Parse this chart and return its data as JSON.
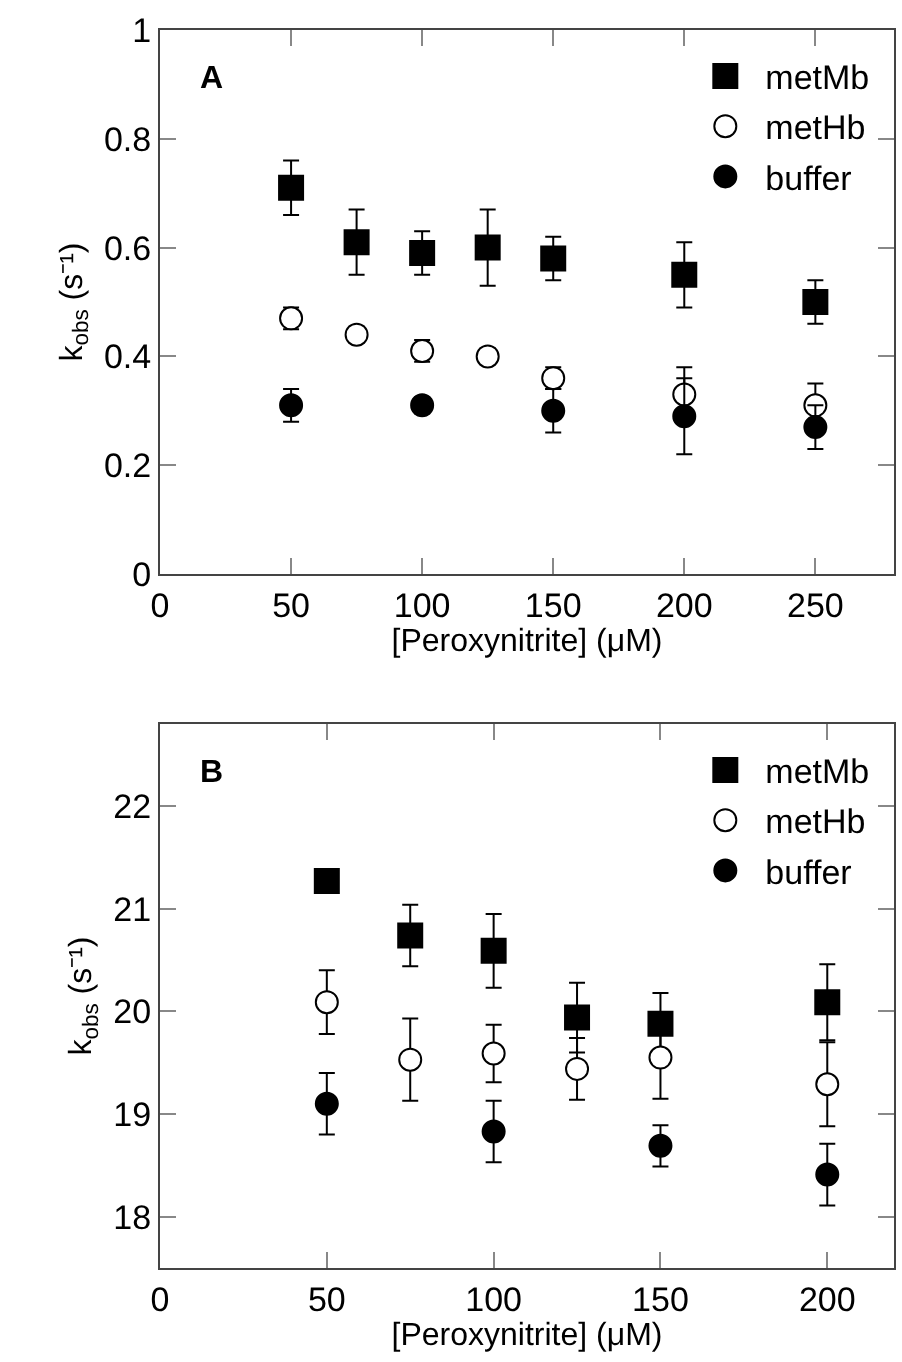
{
  "chart_data": [
    {
      "type": "scatter",
      "title": "A",
      "xlabel": "[Peroxynitrite] (μM)",
      "ylabel": "k$_{obs}$ (s⁻¹)",
      "xlim": [
        0,
        280
      ],
      "xticks": [
        0,
        50,
        100,
        150,
        200,
        250
      ],
      "ylim": [
        0,
        1
      ],
      "yticks": [
        0,
        0.2,
        0.4,
        0.6,
        0.8,
        1
      ],
      "legend": "top right",
      "series": [
        {
          "name": "metMb",
          "color": "#000000",
          "marker": "square",
          "x": [
            50,
            75,
            100,
            125,
            150,
            200,
            250
          ],
          "values": [
            0.71,
            0.61,
            0.59,
            0.6,
            0.58,
            0.55,
            0.5
          ],
          "errors": [
            0.05,
            0.06,
            0.04,
            0.07,
            0.04,
            0.06,
            0.04
          ]
        },
        {
          "name": "metHb",
          "color": "#ffffff",
          "marker": "circle",
          "x": [
            50,
            75,
            100,
            125,
            150,
            200,
            250
          ],
          "values": [
            0.47,
            0.44,
            0.41,
            0.4,
            0.36,
            0.33,
            0.31
          ],
          "errors": [
            0.02,
            0.015,
            0.02,
            0.015,
            0.02,
            0.05,
            0.04
          ]
        },
        {
          "name": "buffer",
          "color": "#000000",
          "marker": "circle",
          "x": [
            50,
            100,
            150,
            200,
            250
          ],
          "values": [
            0.31,
            0.31,
            0.3,
            0.29,
            0.27
          ],
          "errors": [
            0.03,
            0.015,
            0.04,
            0.07,
            0.04
          ]
        }
      ]
    },
    {
      "type": "scatter",
      "title": "B",
      "xlabel": "[Peroxynitrite] (μM)",
      "ylabel": "k$_{obs}$ (s⁻¹)",
      "xlim": [
        0,
        220
      ],
      "xticks": [
        0,
        50,
        100,
        150,
        200
      ],
      "ylim": [
        17.5,
        22.8
      ],
      "yticks": [
        18,
        19,
        20,
        21,
        22
      ],
      "legend": "top right",
      "series": [
        {
          "name": "metMb",
          "color": "#000000",
          "marker": "square",
          "x": [
            50,
            75,
            100,
            125,
            150,
            200
          ],
          "values": [
            21.27,
            20.74,
            20.59,
            19.94,
            19.88,
            20.09
          ],
          "errors": [
            null,
            0.3,
            0.36,
            0.34,
            0.3,
            0.37
          ]
        },
        {
          "name": "metHb",
          "color": "#ffffff",
          "marker": "circle",
          "x": [
            50,
            75,
            100,
            125,
            150,
            200
          ],
          "values": [
            20.09,
            19.53,
            19.59,
            19.44,
            19.55,
            19.29
          ],
          "errors": [
            0.31,
            0.4,
            0.28,
            0.3,
            0.4,
            0.41
          ]
        },
        {
          "name": "buffer",
          "color": "#000000",
          "marker": "circle",
          "x": [
            50,
            100,
            150,
            200
          ],
          "values": [
            19.1,
            18.83,
            18.69,
            18.41
          ],
          "errors": [
            0.3,
            0.3,
            0.2,
            0.3
          ]
        }
      ]
    }
  ]
}
